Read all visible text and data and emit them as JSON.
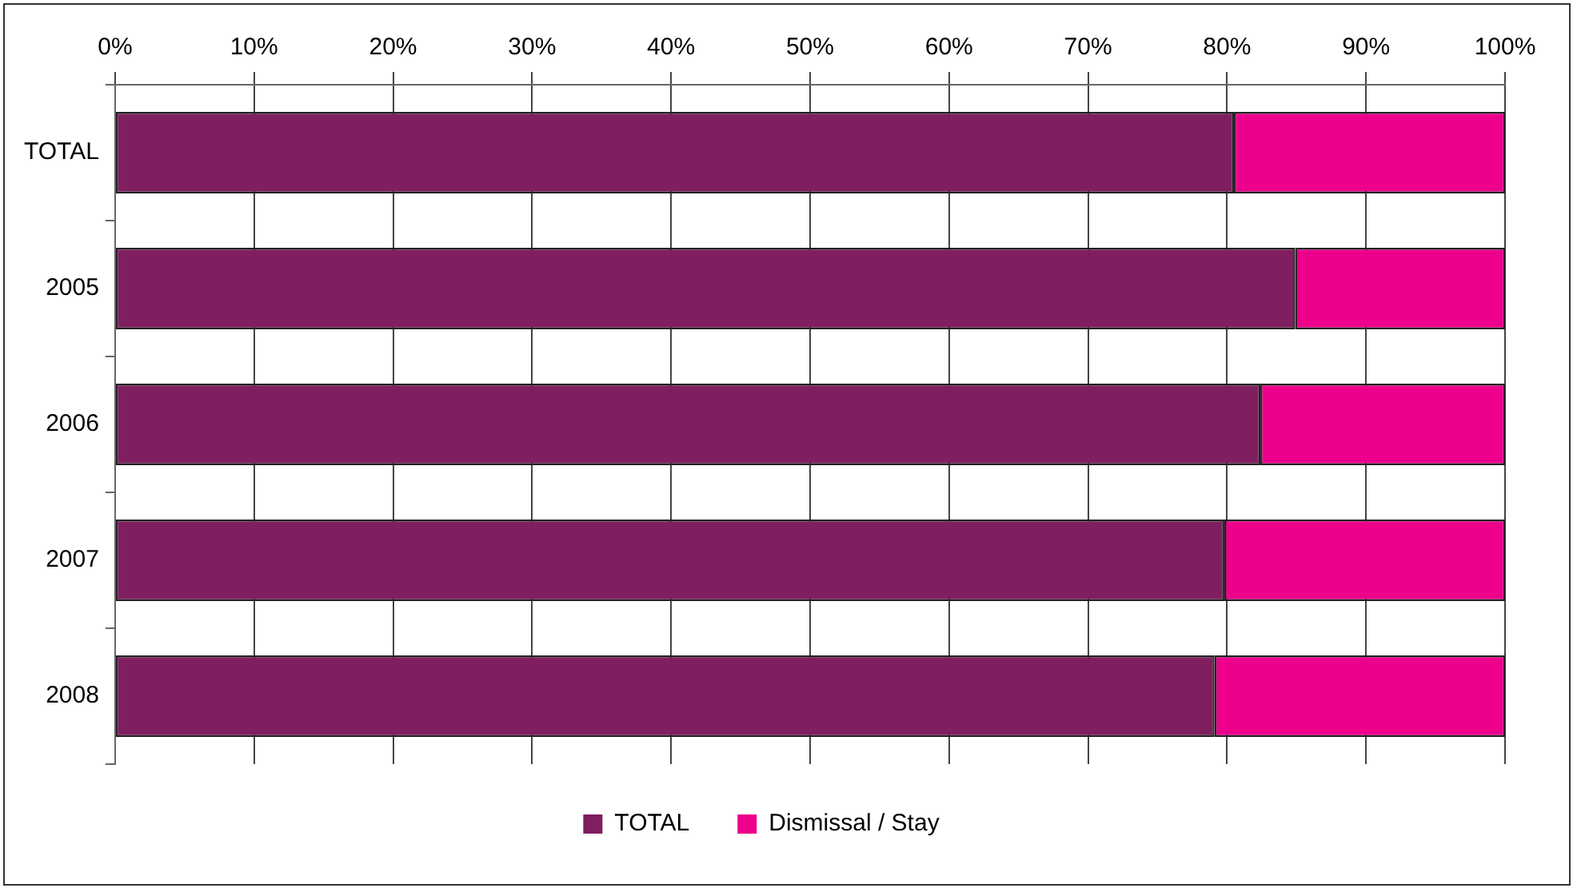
{
  "chart_data": {
    "type": "bar",
    "orientation": "horizontal",
    "stacked": true,
    "categories": [
      "TOTAL",
      "2005",
      "2006",
      "2007",
      "2008"
    ],
    "series": [
      {
        "name": "TOTAL",
        "color": "#7f1f5f",
        "values": [
          80.5,
          84.9,
          82.4,
          79.8,
          79.1
        ]
      },
      {
        "name": "Dismissal / Stay",
        "color": "#ec008c",
        "values": [
          19.5,
          15.1,
          17.6,
          20.2,
          20.9
        ]
      }
    ],
    "xlim": [
      0,
      100
    ],
    "xticks": [
      {
        "value": 0,
        "label": "0%"
      },
      {
        "value": 10,
        "label": "10%"
      },
      {
        "value": 20,
        "label": "20%"
      },
      {
        "value": 30,
        "label": "30%"
      },
      {
        "value": 40,
        "label": "40%"
      },
      {
        "value": 50,
        "label": "50%"
      },
      {
        "value": 60,
        "label": "60%"
      },
      {
        "value": 70,
        "label": "70%"
      },
      {
        "value": 80,
        "label": "80%"
      },
      {
        "value": 90,
        "label": "90%"
      },
      {
        "value": 100,
        "label": "100%"
      }
    ],
    "grid": "x",
    "legend": "bottom"
  }
}
